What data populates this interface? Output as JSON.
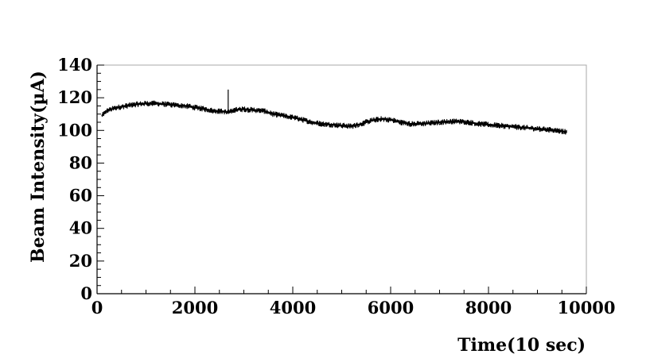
{
  "chart_data": {
    "type": "line",
    "title": "",
    "xlabel": "Time(10 sec)",
    "ylabel": "Beam Intensity(µA)",
    "xlim": [
      0,
      10000
    ],
    "ylim": [
      0,
      140
    ],
    "x_ticks": [
      0,
      2000,
      4000,
      6000,
      8000,
      10000
    ],
    "y_ticks": [
      0,
      20,
      40,
      60,
      80,
      100,
      120,
      140
    ],
    "grid": false,
    "legend": "none",
    "line_color": "#000000",
    "series": [
      {
        "x": [
          100,
          200,
          400,
          600,
          800,
          1000,
          1200,
          1400,
          1600,
          1800,
          2000,
          2200,
          2400,
          2600,
          2700,
          2800,
          3000,
          3200,
          3400,
          3600,
          3800,
          4000,
          4200,
          4400,
          4600,
          4800,
          5000,
          5200,
          5400,
          5600,
          5800,
          6000,
          6200,
          6400,
          6600,
          6800,
          7000,
          7200,
          7400,
          7600,
          7800,
          8000,
          8200,
          8400,
          8600,
          8800,
          9000,
          9200,
          9400,
          9600
        ],
        "y": [
          109,
          112,
          114,
          115,
          116,
          116.5,
          116.5,
          116,
          115.5,
          115,
          114,
          113,
          112,
          111.5,
          111,
          112.5,
          113,
          112.5,
          112,
          110,
          109,
          108,
          106.5,
          105,
          104,
          103.5,
          103,
          102.5,
          104,
          106,
          107,
          106.5,
          105,
          104,
          104,
          104.5,
          105,
          105.5,
          105.5,
          105,
          104,
          103.5,
          103,
          102.5,
          102,
          101.5,
          101,
          100.5,
          100,
          99
        ]
      }
    ],
    "spike": {
      "x": 2680,
      "y_low": 110,
      "y_high": 125
    }
  }
}
